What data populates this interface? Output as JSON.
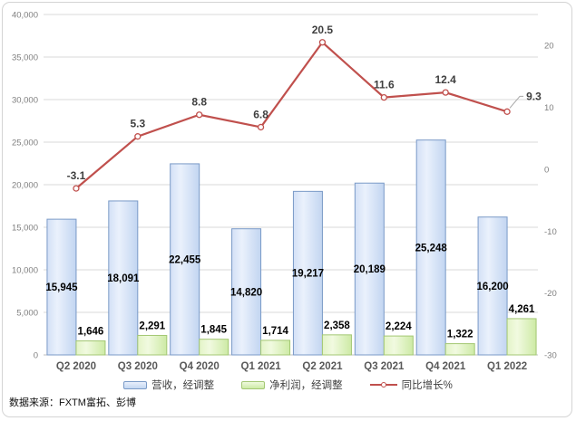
{
  "frame": {
    "source_note": "数据来源：FXTM富拓、彭博"
  },
  "chart_data": {
    "type": "combo",
    "title": "",
    "categories": [
      "Q2 2020",
      "Q3 2020",
      "Q4 2020",
      "Q1 2021",
      "Q2 2021",
      "Q3 2021",
      "Q4 2021",
      "Q1 2022"
    ],
    "series": [
      {
        "name": "营收，经调整",
        "type": "bar",
        "axis": "left",
        "values": [
          15945,
          18091,
          22455,
          14820,
          19217,
          20189,
          25248,
          16200
        ],
        "fill_from": "#d3e0f6",
        "fill_mid": "#eaf1fc",
        "fill_to": "#c2d5f1",
        "border": "#7a9ac7",
        "label_position": "center"
      },
      {
        "name": "净利润，经调整",
        "type": "bar",
        "axis": "left",
        "values": [
          1646,
          2291,
          1845,
          1714,
          2358,
          2224,
          1322,
          4261
        ],
        "fill_from": "#e3f4c7",
        "fill_mid": "#f1fae0",
        "fill_to": "#cdeaa5",
        "border": "#a3c773",
        "label_position": "outside-end"
      },
      {
        "name": "同比增长%",
        "type": "line",
        "axis": "right",
        "values": [
          -3.1,
          5.3,
          8.8,
          6.8,
          20.5,
          11.6,
          12.4,
          9.3
        ],
        "color": "#c0504d",
        "marker": "circle",
        "label_position": "above"
      }
    ],
    "left_axis": {
      "min": 0,
      "max": 40000,
      "step": 5000
    },
    "right_axis": {
      "min": -30,
      "max": 25,
      "tick_min": -30,
      "tick_max": 20,
      "step": 10
    },
    "grid": true,
    "legend_position": "bottom",
    "colors": {
      "gridline": "#d9d9d9",
      "axis_line": "#bfbfbf",
      "axis_text": "#7f7f7f",
      "category_text": "#595959",
      "bar_label_text": "#000000",
      "line_label_text": "#3f3f3f",
      "leader_line": "#a6a6a6"
    }
  }
}
